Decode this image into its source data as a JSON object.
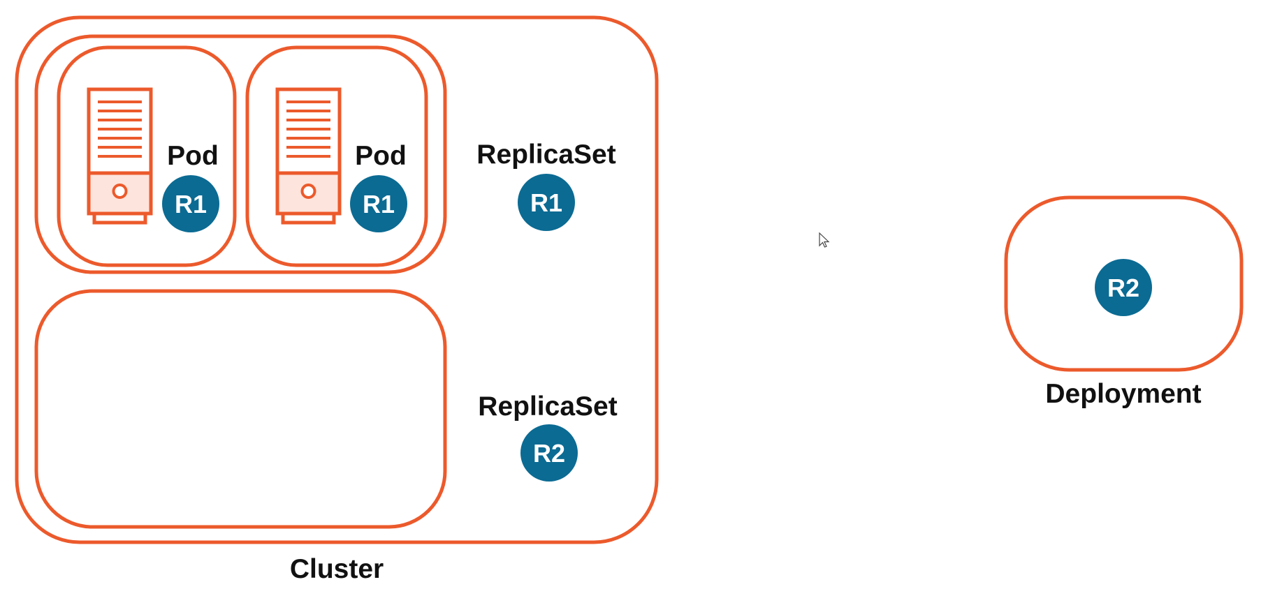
{
  "diagram": {
    "cluster_label": "Cluster",
    "deployment_label": "Deployment",
    "pod_label": "Pod",
    "replicaset_label": "ReplicaSet",
    "pods": [
      {
        "badge": "R1"
      },
      {
        "badge": "R1"
      }
    ],
    "replicasets": [
      {
        "label": "ReplicaSet",
        "badge": "R1"
      },
      {
        "label": "ReplicaSet",
        "badge": "R2"
      }
    ],
    "deployment_badge": "R2"
  },
  "colors": {
    "frame": "#ec5a2c",
    "badge": "#0b6b93",
    "server_bottom": "#fde4dc",
    "text": "#111111"
  },
  "icons": {
    "pod_icon": "server-icon",
    "cursor": "mouse-cursor-icon"
  }
}
